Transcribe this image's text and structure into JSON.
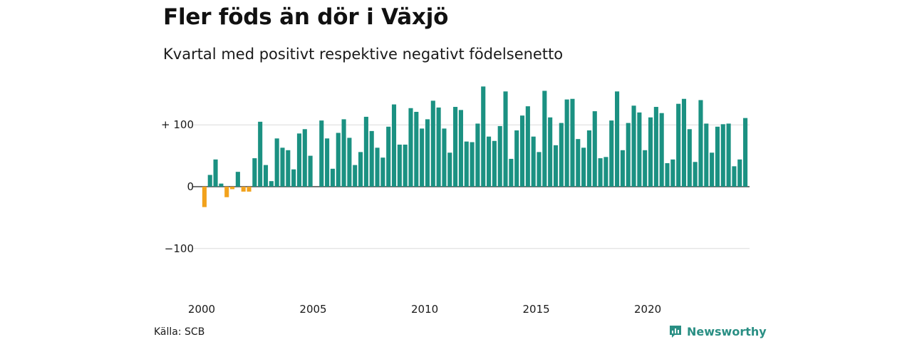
{
  "title": "Fler föds än dör i Växjö",
  "subtitle": "Kvartal med positivt respektive negativt födelsenetto",
  "source": "Källa: SCB",
  "brand": "Newsworthy",
  "colors": {
    "positive": "#1b9182",
    "negative": "#f2a21c",
    "grid": "#dcdcdc",
    "brand": "#2a8f84"
  },
  "chart_data": {
    "type": "bar",
    "title": "Fler föds än dör i Växjö",
    "subtitle": "Kvartal med positivt respektive negativt födelsenetto",
    "ylim": [
      -140,
      170
    ],
    "y_ticks": [
      {
        "value": 100,
        "label": "+ 100"
      },
      {
        "value": 0,
        "label": "0"
      },
      {
        "value": -100,
        "label": "−100"
      }
    ],
    "x_ticks": [
      {
        "value": 2000,
        "label": "2000"
      },
      {
        "value": 2005,
        "label": "2005"
      },
      {
        "value": 2010,
        "label": "2010"
      },
      {
        "value": 2015,
        "label": "2015"
      },
      {
        "value": 2020,
        "label": "2020"
      }
    ],
    "grid": true,
    "start_year": 2000,
    "frequency": "quarterly",
    "values": [
      -33,
      19,
      44,
      5,
      -17,
      -4,
      24,
      -8,
      -8,
      46,
      105,
      35,
      9,
      78,
      63,
      59,
      28,
      86,
      93,
      50,
      0,
      107,
      78,
      29,
      87,
      109,
      79,
      35,
      56,
      113,
      90,
      63,
      47,
      97,
      133,
      68,
      68,
      127,
      121,
      94,
      109,
      139,
      128,
      94,
      55,
      129,
      124,
      73,
      72,
      102,
      162,
      81,
      74,
      98,
      154,
      45,
      91,
      115,
      130,
      81,
      56,
      155,
      112,
      67,
      103,
      141,
      142,
      77,
      63,
      91,
      122,
      46,
      48,
      107,
      154,
      59,
      103,
      131,
      120,
      59,
      112,
      129,
      119,
      38,
      44,
      134,
      142,
      93,
      40,
      140,
      102,
      55,
      97,
      101,
      102,
      33,
      44,
      111
    ]
  }
}
